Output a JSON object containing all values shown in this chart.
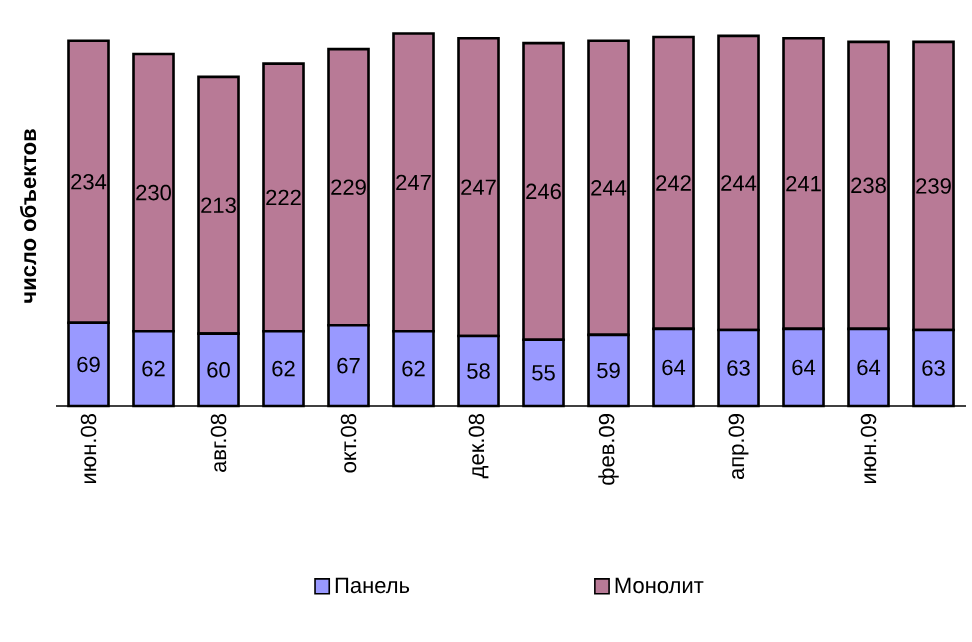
{
  "chart_data": {
    "type": "bar",
    "stacked": true,
    "ylabel": "число объектов",
    "categories": [
      "июн.08",
      null,
      "авг.08",
      null,
      "окт.08",
      null,
      "дек.08",
      null,
      "фев.09",
      null,
      "апр.09",
      null,
      "июн.09",
      null
    ],
    "series": [
      {
        "name": "Панель",
        "color": "#9999ff",
        "values": [
          69,
          62,
          60,
          62,
          67,
          62,
          58,
          55,
          59,
          64,
          63,
          64,
          64,
          63
        ]
      },
      {
        "name": "Монолит",
        "color": "#b87a96",
        "values": [
          234,
          230,
          213,
          222,
          229,
          247,
          247,
          246,
          244,
          242,
          244,
          241,
          238,
          239
        ]
      }
    ],
    "data_labels": true,
    "legend": "bottom",
    "tick_labels": "x",
    "grid": false
  }
}
